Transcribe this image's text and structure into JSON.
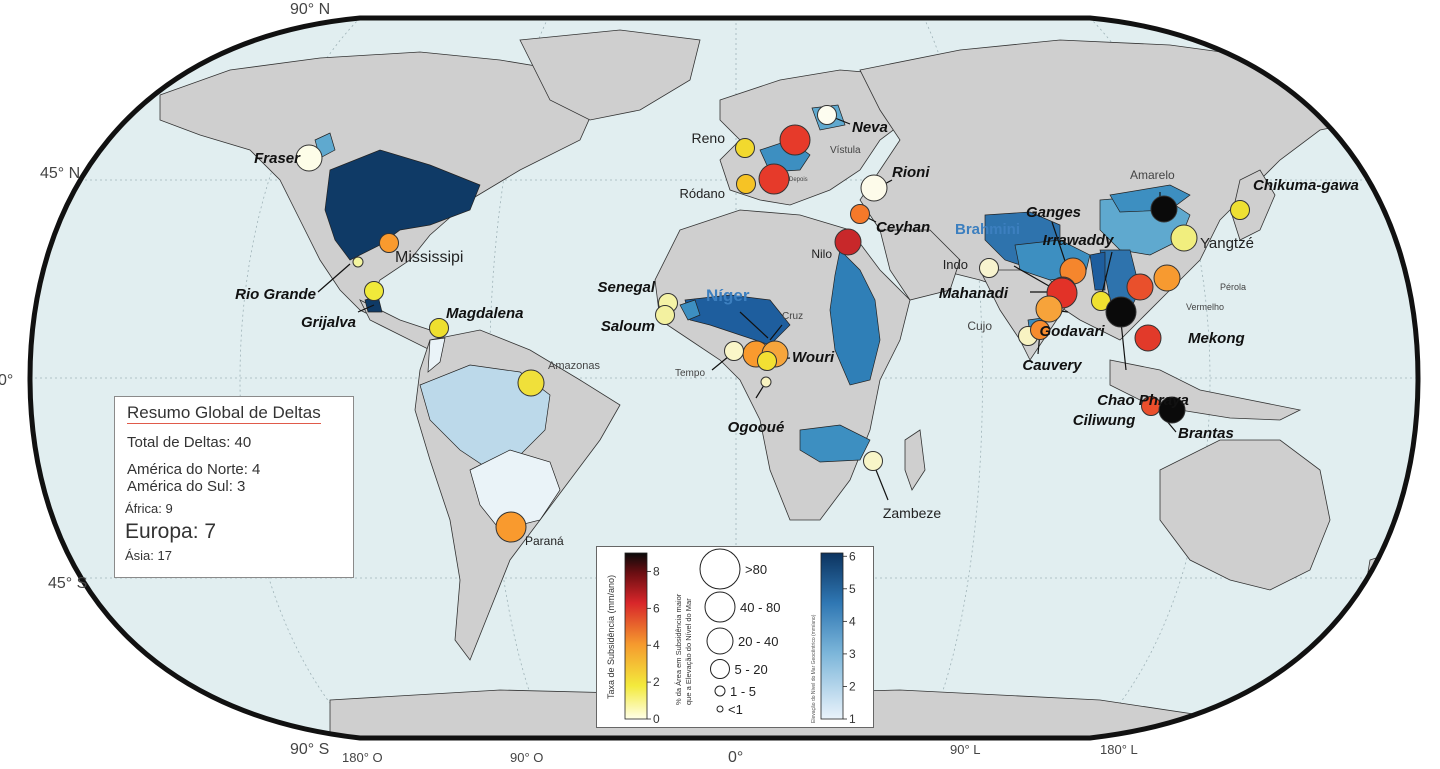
{
  "coords": {
    "lat_90n": "90° N",
    "lat_45n": "45° N",
    "lat_0": "0°",
    "lat_45s": "45° S",
    "lat_90s": "90° S",
    "lon_180w": "180° O",
    "lon_90w": "90° O",
    "lon_0": "0°",
    "lon_90e": "90° L",
    "lon_180e": "180° L"
  },
  "colors": {
    "ocean": "#e1eef0",
    "land": "#cfcfcf",
    "frame": "#111111",
    "basin_dark": "#0f3a66",
    "basin_mid": "#2e73ad",
    "basin_light": "#5fa9cf",
    "basin_pale": "#bcd9ea"
  },
  "basins": [
    {
      "name": "Mississipi",
      "color": "#0f3a66"
    },
    {
      "name": "Amazonas",
      "color": "#bcd9ea"
    },
    {
      "name": "Paraná",
      "color": "#eaf3f8"
    },
    {
      "name": "Níger",
      "color": "#1e5e9e"
    },
    {
      "name": "Nilo",
      "color": "#2f7fb7"
    },
    {
      "name": "Zambeze",
      "color": "#3d8fc1"
    },
    {
      "name": "Brahmini",
      "color": "#2e73ad"
    },
    {
      "name": "Yangtzé",
      "color": "#5fa9cf"
    }
  ],
  "deltas": [
    {
      "name": "Fraser",
      "subsidence": 0.5,
      "area_class": "20 - 40",
      "color": "#fdfde8",
      "label_style": "italic"
    },
    {
      "name": "Mississipi",
      "subsidence": 4,
      "area_class": "5 - 20",
      "color": "#f99a2e",
      "label_style": "plain"
    },
    {
      "name": "Rio Grande",
      "subsidence": 1.5,
      "area_class": "1 - 5",
      "color": "#f3f5a0",
      "label_style": "italic"
    },
    {
      "name": "Grijalva",
      "subsidence": 1.8,
      "area_class": "5 - 20",
      "color": "#f0ea3a",
      "label_style": "italic"
    },
    {
      "name": "Magdalena",
      "subsidence": 1.8,
      "area_class": "5 - 20",
      "color": "#eedf2e",
      "label_style": "italic"
    },
    {
      "name": "Amazonas",
      "subsidence": 2,
      "area_class": "20 - 40",
      "color": "#f0e03a",
      "label_style": "small"
    },
    {
      "name": "Paraná",
      "subsidence": 3.5,
      "area_class": "40 - 80",
      "color": "#f99a2e",
      "label_style": "plain"
    },
    {
      "name": "Senegal",
      "subsidence": 1.5,
      "area_class": "5 - 20",
      "color": "#f5f3a6",
      "label_style": "italic"
    },
    {
      "name": "Saloum",
      "subsidence": 1.5,
      "area_class": "5 - 20",
      "color": "#f3f1a0",
      "label_style": "italic"
    },
    {
      "name": "Níger",
      "subsidence": 4,
      "area_class": "20 - 40",
      "color": "#f99a2e",
      "label_style": "basin"
    },
    {
      "name": "Cruz",
      "subsidence": 3.5,
      "area_class": "20 - 40",
      "color": "#f6a53b",
      "label_style": "small"
    },
    {
      "name": "Wouri",
      "subsidence": 2,
      "area_class": "5 - 20",
      "color": "#f3e033",
      "label_style": "italic"
    },
    {
      "name": "Tempo",
      "subsidence": 0.8,
      "area_class": "5 - 20",
      "color": "#faf6c8",
      "label_style": "small"
    },
    {
      "name": "Ogooué",
      "subsidence": 0.8,
      "area_class": "1 - 5",
      "color": "#f8f3c0",
      "label_style": "italic"
    },
    {
      "name": "Zambeze",
      "subsidence": 0.8,
      "area_class": "5 - 20",
      "color": "#f8f5c8",
      "label_style": "plain"
    },
    {
      "name": "Nilo",
      "subsidence": 7,
      "area_class": "20 - 40",
      "color": "#c8282a",
      "label_style": "plain"
    },
    {
      "name": "Reno",
      "subsidence": 2,
      "area_class": "5 - 20",
      "color": "#f2d92e",
      "label_style": "plain"
    },
    {
      "name": "Vístula",
      "subsidence": 6,
      "area_class": "40 - 80",
      "color": "#e63a2a",
      "label_style": "small"
    },
    {
      "name": "Neva",
      "subsidence": 0.5,
      "area_class": "5 - 20",
      "color": "#fdfdf0",
      "label_style": "italic"
    },
    {
      "name": "Ródano",
      "subsidence": 3,
      "area_class": "5 - 20",
      "color": "#f6c325",
      "label_style": "plain"
    },
    {
      "name": "Depois",
      "subsidence": 6,
      "area_class": "40 - 80",
      "color": "#e63a2a",
      "label_style": "small"
    },
    {
      "name": "Rioni",
      "subsidence": 0.5,
      "area_class": "20 - 40",
      "color": "#fdfbea",
      "label_style": "italic"
    },
    {
      "name": "Ceyhan",
      "subsidence": 4.5,
      "area_class": "5 - 20",
      "color": "#f5792a",
      "label_style": "italic"
    },
    {
      "name": "Indo",
      "subsidence": 0.8,
      "area_class": "5 - 20",
      "color": "#f8f4cf",
      "label_style": "plain"
    },
    {
      "name": "Ganges",
      "subsidence": 4.5,
      "area_class": "20 - 40",
      "color": "#f5862d",
      "label_style": "italic"
    },
    {
      "name": "Brahmini",
      "subsidence": 6,
      "area_class": "20 - 40",
      "color": "#e23228",
      "label_style": "basin"
    },
    {
      "name": "Mahanadi",
      "subsidence": 6,
      "area_class": "40 - 80",
      "color": "#e23228",
      "label_style": "italic"
    },
    {
      "name": "Godavari",
      "subsidence": 3.5,
      "area_class": "20 - 40",
      "color": "#f7a33a",
      "label_style": "italic"
    },
    {
      "name": "Cujo",
      "subsidence": 0.8,
      "area_class": "5 - 20",
      "color": "#f8f3c2",
      "label_style": "small"
    },
    {
      "name": "Cauvery",
      "subsidence": 4,
      "area_class": "5 - 20",
      "color": "#f68c2e",
      "label_style": "italic"
    },
    {
      "name": "Irrawaddy",
      "subsidence": 2,
      "area_class": "5 - 20",
      "color": "#f0e130",
      "label_style": "italic"
    },
    {
      "name": "Chao Phraya",
      "subsidence": 9,
      "area_class": "40 - 80",
      "color": "#0a0a0a",
      "label_style": "italic"
    },
    {
      "name": "Mekong",
      "subsidence": 6,
      "area_class": "20 - 40",
      "color": "#e23a2a",
      "label_style": "italic"
    },
    {
      "name": "Vermelho",
      "subsidence": 5.5,
      "area_class": "20 - 40",
      "color": "#e9502c",
      "label_style": "small"
    },
    {
      "name": "Pérola",
      "subsidence": 4,
      "area_class": "20 - 40",
      "color": "#f79a30",
      "label_style": "small"
    },
    {
      "name": "Yangtzé",
      "subsidence": 1.5,
      "area_class": "20 - 40",
      "color": "#f1ee7e",
      "label_style": "plain"
    },
    {
      "name": "Amarelo",
      "subsidence": 9,
      "area_class": "20 - 40",
      "color": "#0a0a0a",
      "label_style": "small"
    },
    {
      "name": "Chikuma-gawa",
      "subsidence": 2,
      "area_class": "5 - 20",
      "color": "#eee033",
      "label_style": "italic"
    },
    {
      "name": "Ciliwung",
      "subsidence": 5.5,
      "area_class": "5 - 20",
      "color": "#ea4f2c",
      "label_style": "italic"
    },
    {
      "name": "Brantas",
      "subsidence": 9,
      "area_class": "20 - 40",
      "color": "#0a0a0a",
      "label_style": "italic"
    }
  ],
  "summary": {
    "title": "Resumo Global de Deltas",
    "total": "Total de Deltas: 40",
    "north_america": "América do Norte: 4",
    "south_america": "América do Sul: 3",
    "africa": "África: 9",
    "europe": "Europa: 7",
    "asia": "Ásia: 17"
  },
  "legend": {
    "subsidence_title": "Taxa de Subsidência (mm/ano)",
    "subsidence_ticks": [
      "0",
      "2",
      "4",
      "6",
      "8"
    ],
    "area_title_1": "% da Área em Subsidência maior",
    "area_title_2": "que a Elevação do Nível do Mar",
    "area_classes": [
      ">80",
      "40 - 80",
      "20 - 40",
      "5 - 20",
      "1 - 5",
      "<1"
    ],
    "rise_title": "Elevação do Nível do Mar Geocêntrico (mm/ano)",
    "rise_ticks": [
      "1",
      "2",
      "3",
      "4",
      "5",
      "6"
    ]
  }
}
